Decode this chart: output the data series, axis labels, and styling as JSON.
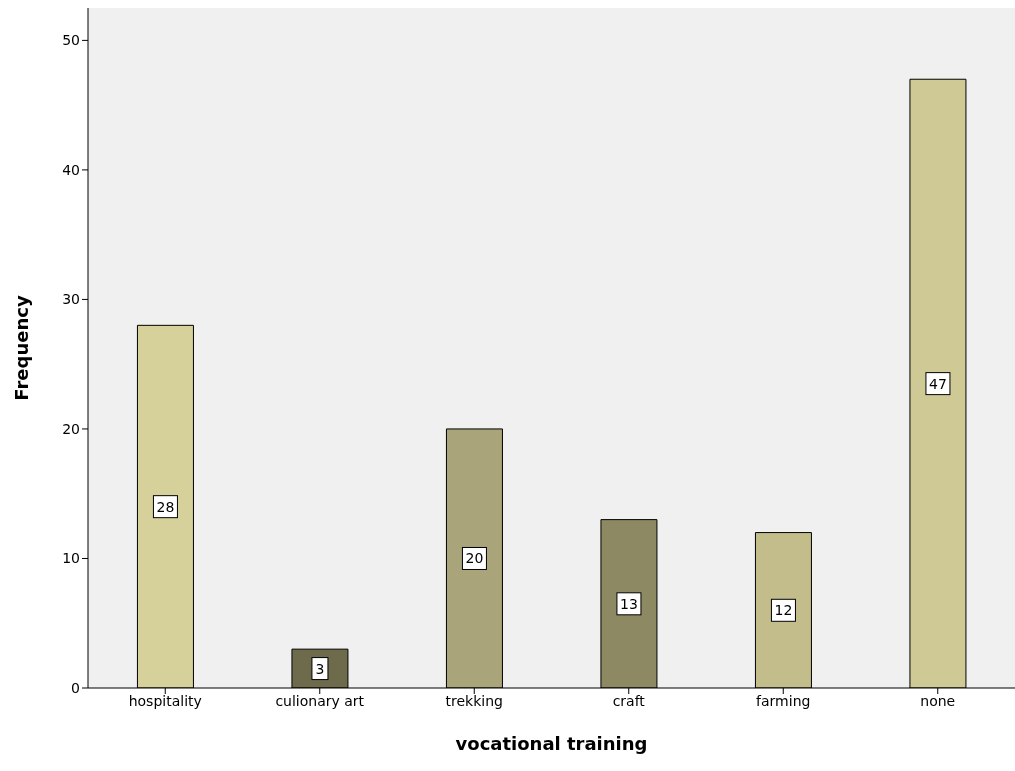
{
  "chart_data": {
    "type": "bar",
    "xlabel": "vocational training",
    "ylabel": "Frequency",
    "categories": [
      "hospitality",
      "culionary art",
      "trekking",
      "craft",
      "farming",
      "none"
    ],
    "values": [
      28,
      3,
      20,
      13,
      12,
      47
    ],
    "colors": [
      "#d6d19b",
      "#6e6a4c",
      "#a9a47a",
      "#8d8962",
      "#c2bd8a",
      "#cfca95"
    ],
    "ylim": [
      0,
      52.5
    ],
    "yticks": [
      0,
      10,
      20,
      30,
      40,
      50
    ],
    "grid": false,
    "data_labels": true
  }
}
